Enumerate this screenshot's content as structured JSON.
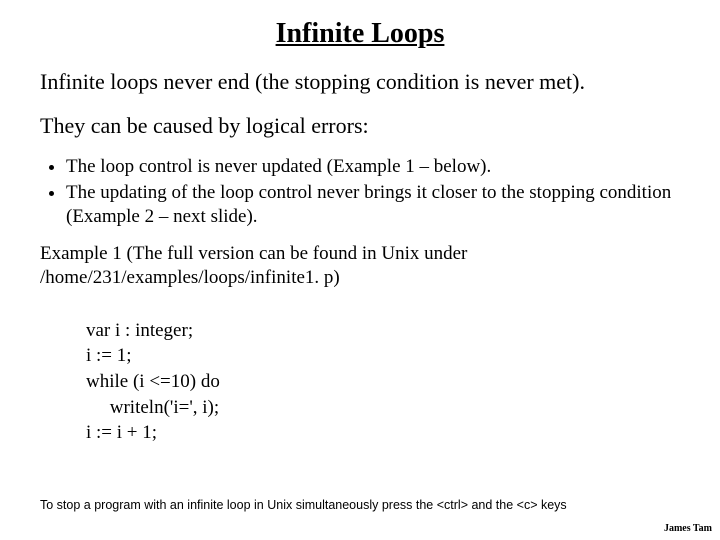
{
  "title": "Infinite Loops",
  "intro": "Infinite loops never end (the stopping condition is never met).",
  "cause_intro": "They can be caused by logical errors:",
  "bullets": [
    "The loop control is never updated (Example 1 – below).",
    "The updating of the loop control never brings it closer to the stopping condition (Example 2 – next slide)."
  ],
  "example_line1": "Example 1 (The full version can be found in Unix under",
  "example_line2": "/home/231/examples/loops/infinite1. p)",
  "code": "var i : integer;\ni := 1;\nwhile (i <=10) do\n     writeln('i=', i);\ni := i + 1;",
  "footer": "To stop a program with an infinite loop in Unix simultaneously press the <ctrl> and the <c> keys",
  "author": "James Tam"
}
